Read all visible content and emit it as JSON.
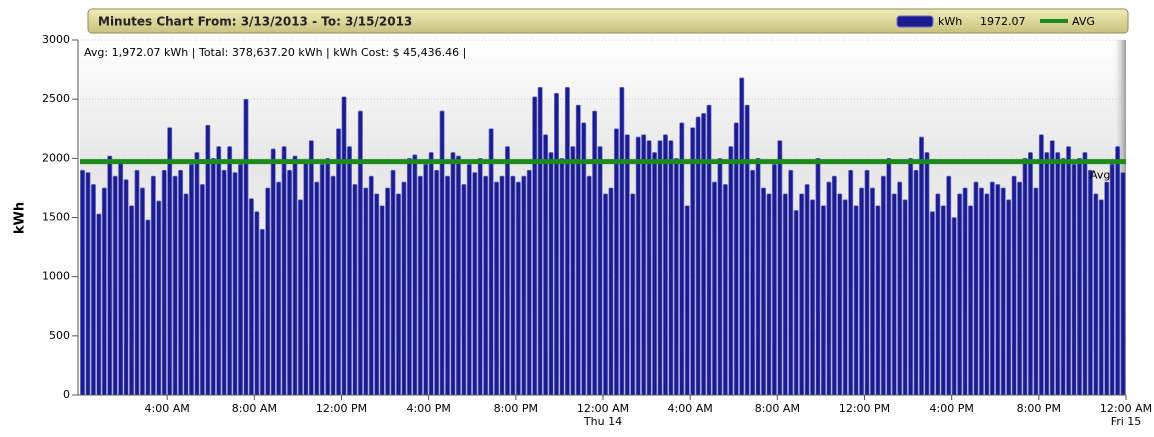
{
  "chart_data": {
    "type": "bar",
    "title": "Minutes Chart From: 3/13/2013 - To: 3/15/2013",
    "stats": "Avg: 1,972.07 kWh | Total: 378,637.20 kWh | kWh Cost: $ 45,436.46 |",
    "y_label": "kWh",
    "avg": 1972.07,
    "avg_label": "Avg",
    "avg_legend": "AVG",
    "avg_color": "#1b8c1b",
    "grid": true,
    "xlim": [
      0,
      48
    ],
    "xticks": [
      {
        "value": 4,
        "label": "4:00 AM"
      },
      {
        "value": 8,
        "label": "8:00 AM"
      },
      {
        "value": 12,
        "label": "12:00 PM"
      },
      {
        "value": 16,
        "label": "4:00 PM"
      },
      {
        "value": 20,
        "label": "8:00 PM"
      },
      {
        "value": 24,
        "label": "12:00 AM",
        "sublabel": "Thu 14"
      },
      {
        "value": 28,
        "label": "4:00 AM"
      },
      {
        "value": 32,
        "label": "8:00 AM"
      },
      {
        "value": 36,
        "label": "12:00 PM"
      },
      {
        "value": 40,
        "label": "4:00 PM"
      },
      {
        "value": 44,
        "label": "8:00 PM"
      },
      {
        "value": 48,
        "label": "12:00 AM",
        "sublabel": "Fri 15"
      }
    ],
    "ylim": [
      0,
      3000
    ],
    "yticks": [
      0,
      500,
      1000,
      1500,
      2000,
      2500,
      3000
    ],
    "x": [
      0,
      0.25,
      0.5,
      0.75,
      1,
      1.25,
      1.5,
      1.75,
      2,
      2.25,
      2.5,
      2.75,
      3,
      3.25,
      3.5,
      3.75,
      4,
      4.25,
      4.5,
      4.75,
      5,
      5.25,
      5.5,
      5.75,
      6,
      6.25,
      6.5,
      6.75,
      7,
      7.25,
      7.5,
      7.75,
      8,
      8.25,
      8.5,
      8.75,
      9,
      9.25,
      9.5,
      9.75,
      10,
      10.25,
      10.5,
      10.75,
      11,
      11.25,
      11.5,
      11.75,
      12,
      12.25,
      12.5,
      12.75,
      13,
      13.25,
      13.5,
      13.75,
      14,
      14.25,
      14.5,
      14.75,
      15,
      15.25,
      15.5,
      15.75,
      16,
      16.25,
      16.5,
      16.75,
      17,
      17.25,
      17.5,
      17.75,
      18,
      18.25,
      18.5,
      18.75,
      19,
      19.25,
      19.5,
      19.75,
      20,
      20.25,
      20.5,
      20.75,
      21,
      21.25,
      21.5,
      21.75,
      22,
      22.25,
      22.5,
      22.75,
      23,
      23.25,
      23.5,
      23.75,
      24,
      24.25,
      24.5,
      24.75,
      25,
      25.25,
      25.5,
      25.75,
      26,
      26.25,
      26.5,
      26.75,
      27,
      27.25,
      27.5,
      27.75,
      28,
      28.25,
      28.5,
      28.75,
      29,
      29.25,
      29.5,
      29.75,
      30,
      30.25,
      30.5,
      30.75,
      31,
      31.25,
      31.5,
      31.75,
      32,
      32.25,
      32.5,
      32.75,
      33,
      33.25,
      33.5,
      33.75,
      34,
      34.25,
      34.5,
      34.75,
      35,
      35.25,
      35.5,
      35.75,
      36,
      36.25,
      36.5,
      36.75,
      37,
      37.25,
      37.5,
      37.75,
      38,
      38.25,
      38.5,
      38.75,
      39,
      39.25,
      39.5,
      39.75,
      40,
      40.25,
      40.5,
      40.75,
      41,
      41.25,
      41.5,
      41.75,
      42,
      42.25,
      42.5,
      42.75,
      43,
      43.25,
      43.5,
      43.75,
      44,
      44.25,
      44.5,
      44.75,
      45,
      45.25,
      45.5,
      45.75,
      46,
      46.25,
      46.5,
      46.75,
      47,
      47.25,
      47.5,
      47.75
    ],
    "series": [
      {
        "name": "kWh",
        "color": "#1c1c8a",
        "values": [
          1900,
          1880,
          1780,
          1530,
          1750,
          2020,
          1850,
          1980,
          1820,
          1600,
          1900,
          1750,
          1480,
          1850,
          1640,
          1900,
          2260,
          1850,
          1900,
          1700,
          1950,
          2050,
          1780,
          2280,
          2000,
          2100,
          1900,
          2100,
          1880,
          1950,
          2500,
          1660,
          1550,
          1400,
          1750,
          2080,
          1800,
          2100,
          1900,
          2020,
          1650,
          1980,
          2150,
          1800,
          1950,
          2000,
          1850,
          2250,
          2520,
          2100,
          1780,
          2400,
          1750,
          1850,
          1700,
          1600,
          1750,
          1900,
          1700,
          1800,
          2000,
          2030,
          1850,
          1950,
          2050,
          1900,
          2400,
          1850,
          2050,
          2020,
          1780,
          1950,
          1880,
          2000,
          1850,
          2250,
          1800,
          1850,
          2100,
          1850,
          1800,
          1850,
          1900,
          2520,
          2600,
          2200,
          2050,
          2550,
          2000,
          2600,
          2100,
          2450,
          2300,
          1850,
          2400,
          2100,
          1700,
          1750,
          2250,
          2600,
          2200,
          1700,
          2180,
          2200,
          2150,
          2050,
          2150,
          2200,
          2150,
          2000,
          2300,
          1600,
          2260,
          2350,
          2380,
          2450,
          1800,
          2000,
          1780,
          2100,
          2300,
          2680,
          2450,
          1900,
          2000,
          1750,
          1700,
          1950,
          2150,
          1700,
          1900,
          1560,
          1700,
          1780,
          1650,
          2000,
          1600,
          1800,
          1850,
          1700,
          1650,
          1900,
          1600,
          1750,
          1900,
          1750,
          1600,
          1850,
          2000,
          1700,
          1800,
          1650,
          2000,
          1900,
          2180,
          2050,
          1550,
          1700,
          1600,
          1850,
          1500,
          1700,
          1750,
          1600,
          1800,
          1750,
          1700,
          1800,
          1780,
          1750,
          1650,
          1850,
          1800,
          2000,
          2050,
          1750,
          2200,
          2050,
          2150,
          2050,
          2000,
          2100,
          1950,
          2000,
          2050,
          1900,
          1700,
          1650,
          1800,
          1950,
          2100,
          1880
        ]
      }
    ]
  }
}
